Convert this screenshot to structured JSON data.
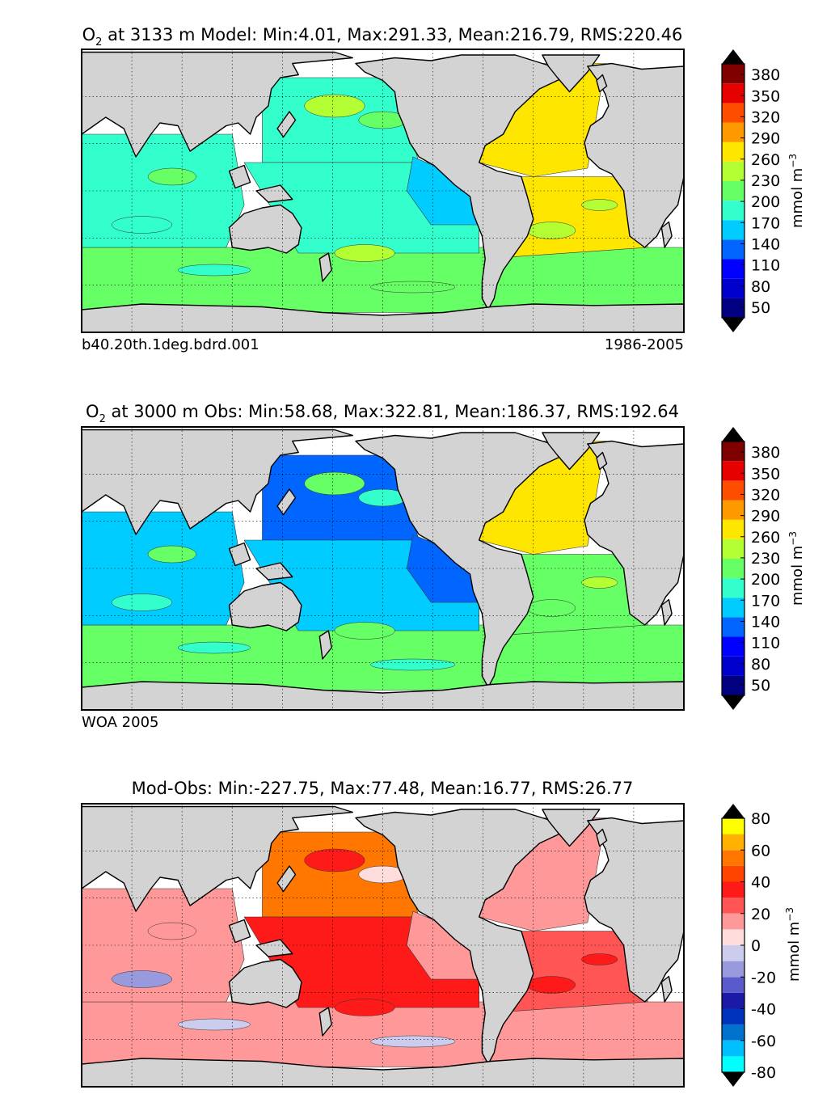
{
  "panels": [
    {
      "title_var": "O",
      "title_sub": "2",
      "title_rest": " at 3133 m Model: Min:4.01, Max:291.33, Mean:216.79, RMS:220.46",
      "left_label": "b40.20th.1deg.bdrd.001",
      "right_label": "1986-2005",
      "colorbar_label": "mmol m",
      "colorbar_sup": "−3"
    },
    {
      "title_var": "O",
      "title_sub": "2",
      "title_rest": " at 3000 m Obs: Min:58.68, Max:322.81, Mean:186.37, RMS:192.64",
      "left_label": "WOA 2005",
      "right_label": "",
      "colorbar_label": "mmol m",
      "colorbar_sup": "−3"
    },
    {
      "title_var": "",
      "title_sub": "",
      "title_rest": "Mod-Obs: Min:-227.75, Max:77.48, Mean:16.77, RMS:26.77",
      "left_label": "",
      "right_label": "",
      "colorbar_label": "mmol m",
      "colorbar_sup": "−3"
    }
  ],
  "chart_data": [
    {
      "type": "heatmap",
      "title": "O2 at 3133 m Model: Min:4.01, Max:291.33, Mean:216.79, RMS:220.46",
      "projection": "global cylindrical map",
      "units": "mmol m-3",
      "stats": {
        "min": 4.01,
        "max": 291.33,
        "mean": 216.79,
        "rms": 220.46
      },
      "colorbar_ticks": [
        50,
        80,
        110,
        140,
        170,
        200,
        230,
        260,
        290,
        320,
        350,
        380
      ],
      "levels": [
        35,
        50,
        65,
        80,
        95,
        110,
        125,
        140,
        155,
        170,
        185,
        200,
        215,
        230,
        245,
        260,
        275,
        290,
        305,
        320,
        335,
        350,
        365,
        380,
        395
      ],
      "colors": [
        "#000080",
        "#0000cd",
        "#0000ff",
        "#0066ff",
        "#00ccff",
        "#33ffcc",
        "#66ff66",
        "#b3ff33",
        "#ffe600",
        "#ff9900",
        "#ff4d00",
        "#e60000",
        "#800000"
      ],
      "regions": {
        "north_atlantic": 275,
        "south_atlantic": 265,
        "north_pacific": 185,
        "south_pacific": 180,
        "indian": 175,
        "southern_ocean": 225,
        "east_tropical_pacific": 155
      }
    },
    {
      "type": "heatmap",
      "title": "O2 at 3000 m Obs: Min:58.68, Max:322.81, Mean:186.37, RMS:192.64",
      "projection": "global cylindrical map",
      "units": "mmol m-3",
      "stats": {
        "min": 58.68,
        "max": 322.81,
        "mean": 186.37,
        "rms": 192.64
      },
      "colorbar_ticks": [
        50,
        80,
        110,
        140,
        170,
        200,
        230,
        260,
        290,
        320,
        350,
        380
      ],
      "levels": [
        35,
        50,
        65,
        80,
        95,
        110,
        125,
        140,
        155,
        170,
        185,
        200,
        215,
        230,
        245,
        260,
        275,
        290,
        305,
        320,
        335,
        350,
        365,
        380,
        395
      ],
      "colors": [
        "#000080",
        "#0000cd",
        "#0000ff",
        "#0066ff",
        "#00ccff",
        "#33ffcc",
        "#66ff66",
        "#b3ff33",
        "#ffe600",
        "#ff9900",
        "#ff4d00",
        "#e60000",
        "#800000"
      ],
      "regions": {
        "north_atlantic": 265,
        "south_atlantic": 225,
        "north_pacific": 125,
        "south_pacific": 155,
        "indian": 165,
        "southern_ocean": 210,
        "east_tropical_pacific": 140
      }
    },
    {
      "type": "heatmap",
      "title": "Mod-Obs: Min:-227.75, Max:77.48, Mean:16.77, RMS:26.77",
      "projection": "global cylindrical map",
      "units": "mmol m-3",
      "stats": {
        "min": -227.75,
        "max": 77.48,
        "mean": 16.77,
        "rms": 26.77
      },
      "colorbar_ticks": [
        -80,
        -60,
        -40,
        -20,
        0,
        20,
        40,
        60,
        80
      ],
      "levels": [
        -80,
        -70,
        -60,
        -50,
        -40,
        -30,
        -20,
        -10,
        0,
        10,
        20,
        30,
        40,
        50,
        60,
        70,
        80
      ],
      "colors": [
        "#00ffff",
        "#00bfff",
        "#0072cc",
        "#0033bb",
        "#1a1aa6",
        "#5a5acc",
        "#9999dd",
        "#ccccee",
        "#ffdddd",
        "#ff9999",
        "#ff5555",
        "#ff1a1a",
        "#ff4400",
        "#ff7700",
        "#ffb000",
        "#ffff00"
      ],
      "regions": {
        "north_atlantic": 12,
        "south_atlantic": 28,
        "north_pacific": 55,
        "south_pacific": 35,
        "indian": 18,
        "southern_ocean": 18,
        "east_tropical_pacific": 15
      }
    }
  ]
}
